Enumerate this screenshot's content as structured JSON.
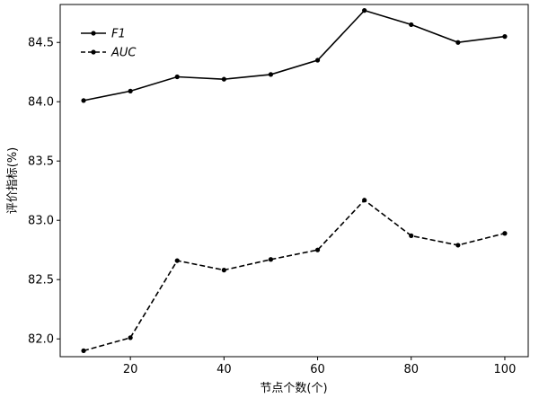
{
  "chart_data": {
    "type": "line",
    "title": "",
    "xlabel": "节点个数(个)",
    "ylabel": "评价指标(%)",
    "x": [
      10,
      20,
      30,
      40,
      50,
      60,
      70,
      80,
      90,
      100
    ],
    "xlim": [
      5,
      105
    ],
    "ylim": [
      81.85,
      84.82
    ],
    "xticks": [
      20,
      40,
      60,
      80,
      100
    ],
    "yticks": [
      82.0,
      82.5,
      83.0,
      83.5,
      84.0,
      84.5
    ],
    "grid": false,
    "legend_position": "top-left",
    "series": [
      {
        "name": "F1",
        "line_style": "solid",
        "marker": "circle",
        "color": "#000000",
        "values": [
          84.01,
          84.09,
          84.21,
          84.19,
          84.23,
          84.35,
          84.77,
          84.65,
          84.5,
          84.55
        ]
      },
      {
        "name": "AUC",
        "line_style": "dashed",
        "marker": "circle",
        "color": "#000000",
        "values": [
          81.9,
          82.01,
          82.66,
          82.58,
          82.67,
          82.75,
          83.17,
          82.87,
          82.79,
          82.89
        ]
      }
    ]
  }
}
